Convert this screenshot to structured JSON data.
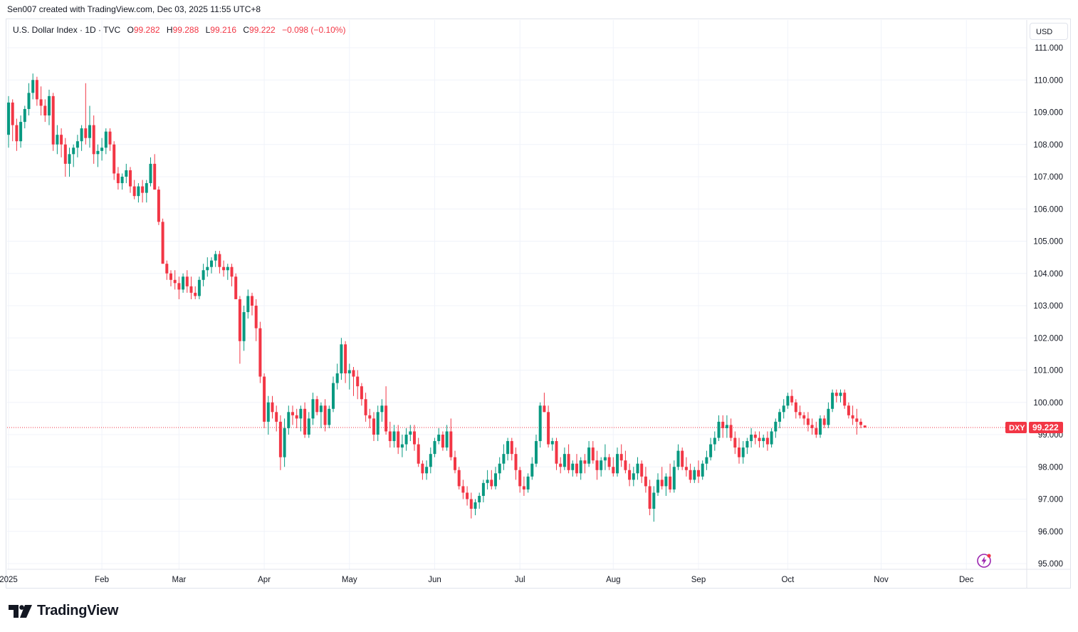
{
  "header": {
    "caption": "Sen007 created with TradingView.com, Dec 03, 2025 11:55 UTC+8"
  },
  "legend": {
    "symbol": "U.S. Dollar Index · 1D · TVC",
    "o_label": "O",
    "o_value": "99.282",
    "h_label": "H",
    "h_value": "99.288",
    "l_label": "L",
    "l_value": "99.216",
    "c_label": "C",
    "c_value": "99.222",
    "change": "−0.098 (−0.10%)"
  },
  "currency": "USD",
  "price_badge": {
    "ticker": "DXY",
    "price": "99.222"
  },
  "footer": {
    "brand": "TradingView"
  },
  "colors": {
    "up": "#089981",
    "down": "#f23645",
    "grid": "#f0f3fa",
    "axis_text": "#131722"
  },
  "chart_data": {
    "type": "candlestick",
    "title": "U.S. Dollar Index · 1D · TVC",
    "ylabel": "USD",
    "ylim": [
      94.7,
      111.4
    ],
    "y_ticks": [
      "95.000",
      "96.000",
      "97.000",
      "98.000",
      "99.000",
      "100.000",
      "101.000",
      "102.000",
      "103.000",
      "104.000",
      "105.000",
      "106.000",
      "107.000",
      "108.000",
      "109.000",
      "110.000",
      "111.000"
    ],
    "x_tick_labels": [
      "2025",
      "Feb",
      "Mar",
      "Apr",
      "May",
      "Jun",
      "Jul",
      "Aug",
      "Sep",
      "Oct",
      "Nov",
      "Dec"
    ],
    "x_tick_bar_index": [
      0,
      23,
      42,
      63,
      84,
      105,
      126,
      149,
      170,
      192,
      215,
      236
    ],
    "last_price": 99.222,
    "candles": [
      [
        108.3,
        109.5,
        107.9,
        109.3
      ],
      [
        109.3,
        109.4,
        108.1,
        108.6
      ],
      [
        108.6,
        108.8,
        107.8,
        108.1
      ],
      [
        108.1,
        108.9,
        107.9,
        108.7
      ],
      [
        108.7,
        109.2,
        108.5,
        109.1
      ],
      [
        109.1,
        109.9,
        108.9,
        109.6
      ],
      [
        109.6,
        110.2,
        109.4,
        110.0
      ],
      [
        110.0,
        110.1,
        109.2,
        109.4
      ],
      [
        109.4,
        109.8,
        108.9,
        109.2
      ],
      [
        109.2,
        109.4,
        108.7,
        108.9
      ],
      [
        108.9,
        109.7,
        108.6,
        109.5
      ],
      [
        109.5,
        109.6,
        107.8,
        108.0
      ],
      [
        108.0,
        108.6,
        107.7,
        108.3
      ],
      [
        108.3,
        108.5,
        107.6,
        108.0
      ],
      [
        108.0,
        108.2,
        107.0,
        107.4
      ],
      [
        107.4,
        107.9,
        107.0,
        107.7
      ],
      [
        107.7,
        108.0,
        107.3,
        107.9
      ],
      [
        107.9,
        108.3,
        107.6,
        108.1
      ],
      [
        108.1,
        108.6,
        107.8,
        108.5
      ],
      [
        108.5,
        109.9,
        108.0,
        108.2
      ],
      [
        108.2,
        109.2,
        107.9,
        108.6
      ],
      [
        108.6,
        108.9,
        107.4,
        107.7
      ],
      [
        107.7,
        108.0,
        107.3,
        107.8
      ],
      [
        107.8,
        108.2,
        107.5,
        107.9
      ],
      [
        107.9,
        108.5,
        107.7,
        108.4
      ],
      [
        108.4,
        108.5,
        107.8,
        108.0
      ],
      [
        108.0,
        108.1,
        106.9,
        107.1
      ],
      [
        107.1,
        107.3,
        106.6,
        106.8
      ],
      [
        106.8,
        107.1,
        106.6,
        107.0
      ],
      [
        107.0,
        107.4,
        106.8,
        107.2
      ],
      [
        107.2,
        107.3,
        106.5,
        106.7
      ],
      [
        106.7,
        106.9,
        106.3,
        106.4
      ],
      [
        106.4,
        106.8,
        106.2,
        106.7
      ],
      [
        106.7,
        106.9,
        106.2,
        106.5
      ],
      [
        106.5,
        106.9,
        106.2,
        106.8
      ],
      [
        106.8,
        107.6,
        106.7,
        107.4
      ],
      [
        107.4,
        107.7,
        106.6,
        106.6
      ],
      [
        106.6,
        106.7,
        105.5,
        105.6
      ],
      [
        105.6,
        105.7,
        104.3,
        104.3
      ],
      [
        104.3,
        104.4,
        103.8,
        104.0
      ],
      [
        104.0,
        104.1,
        103.6,
        103.8
      ],
      [
        103.8,
        104.1,
        103.5,
        103.7
      ],
      [
        103.7,
        103.9,
        103.2,
        103.5
      ],
      [
        103.5,
        104.0,
        103.4,
        103.9
      ],
      [
        103.9,
        104.1,
        103.4,
        103.6
      ],
      [
        103.6,
        103.9,
        103.2,
        103.4
      ],
      [
        103.4,
        103.6,
        103.2,
        103.3
      ],
      [
        103.3,
        103.9,
        103.2,
        103.8
      ],
      [
        103.8,
        104.3,
        103.6,
        104.1
      ],
      [
        104.1,
        104.5,
        103.9,
        104.2
      ],
      [
        104.2,
        104.5,
        104.0,
        104.4
      ],
      [
        104.4,
        104.7,
        104.2,
        104.6
      ],
      [
        104.6,
        104.7,
        104.0,
        104.2
      ],
      [
        104.2,
        104.4,
        103.9,
        104.1
      ],
      [
        104.1,
        104.3,
        103.8,
        104.2
      ],
      [
        104.2,
        104.3,
        103.6,
        103.9
      ],
      [
        103.9,
        104.0,
        103.3,
        103.2
      ],
      [
        103.2,
        103.3,
        101.2,
        101.9
      ],
      [
        101.9,
        103.0,
        101.6,
        102.8
      ],
      [
        102.8,
        103.5,
        102.6,
        103.3
      ],
      [
        103.3,
        103.4,
        102.7,
        103.0
      ],
      [
        103.0,
        103.2,
        101.9,
        102.3
      ],
      [
        102.3,
        102.5,
        100.6,
        100.8
      ],
      [
        100.8,
        100.9,
        99.2,
        99.4
      ],
      [
        99.4,
        100.2,
        99.0,
        100.0
      ],
      [
        100.0,
        100.2,
        99.5,
        99.7
      ],
      [
        99.7,
        99.9,
        99.1,
        99.4
      ],
      [
        99.4,
        99.6,
        97.9,
        98.3
      ],
      [
        98.3,
        99.5,
        98.0,
        99.2
      ],
      [
        99.2,
        99.9,
        99.0,
        99.7
      ],
      [
        99.7,
        99.9,
        99.3,
        99.6
      ],
      [
        99.6,
        99.8,
        99.2,
        99.5
      ],
      [
        99.5,
        99.9,
        99.1,
        99.8
      ],
      [
        99.8,
        100.0,
        98.9,
        99.0
      ],
      [
        99.0,
        99.7,
        98.9,
        99.5
      ],
      [
        99.5,
        100.3,
        99.3,
        100.1
      ],
      [
        100.1,
        100.2,
        99.6,
        99.7
      ],
      [
        99.7,
        100.0,
        99.2,
        99.9
      ],
      [
        99.9,
        100.1,
        99.1,
        99.3
      ],
      [
        99.3,
        99.9,
        99.2,
        99.8
      ],
      [
        99.8,
        100.8,
        99.7,
        100.6
      ],
      [
        100.6,
        101.2,
        100.4,
        100.9
      ],
      [
        100.9,
        102.0,
        100.7,
        101.8
      ],
      [
        101.8,
        101.9,
        100.6,
        100.9
      ],
      [
        100.9,
        101.2,
        100.4,
        101.0
      ],
      [
        101.0,
        101.1,
        100.2,
        100.8
      ],
      [
        100.8,
        101.0,
        100.1,
        100.5
      ],
      [
        100.5,
        100.6,
        99.9,
        100.1
      ],
      [
        100.1,
        100.3,
        99.4,
        99.6
      ],
      [
        99.6,
        99.8,
        99.2,
        99.5
      ],
      [
        99.5,
        99.7,
        98.8,
        99.0
      ],
      [
        99.0,
        99.9,
        98.8,
        99.7
      ],
      [
        99.7,
        100.1,
        99.4,
        99.9
      ],
      [
        99.9,
        100.5,
        99.0,
        99.1
      ],
      [
        99.1,
        99.4,
        98.6,
        98.8
      ],
      [
        98.8,
        99.3,
        98.6,
        99.1
      ],
      [
        99.1,
        99.3,
        98.4,
        98.6
      ],
      [
        98.6,
        99.0,
        98.3,
        98.7
      ],
      [
        98.7,
        99.2,
        98.5,
        99.0
      ],
      [
        99.0,
        99.3,
        98.8,
        99.1
      ],
      [
        99.1,
        99.3,
        98.5,
        98.7
      ],
      [
        98.7,
        98.9,
        98.0,
        98.1
      ],
      [
        98.1,
        98.2,
        97.6,
        97.8
      ],
      [
        97.8,
        98.2,
        97.6,
        98.0
      ],
      [
        98.0,
        98.6,
        97.8,
        98.4
      ],
      [
        98.4,
        98.9,
        98.3,
        98.8
      ],
      [
        98.8,
        99.2,
        98.7,
        99.0
      ],
      [
        99.0,
        99.1,
        98.5,
        98.6
      ],
      [
        98.6,
        99.3,
        98.5,
        99.1
      ],
      [
        99.1,
        99.5,
        98.2,
        98.3
      ],
      [
        98.3,
        98.5,
        97.8,
        97.9
      ],
      [
        97.9,
        98.0,
        97.3,
        97.4
      ],
      [
        97.4,
        97.6,
        97.0,
        97.2
      ],
      [
        97.2,
        97.4,
        96.8,
        97.0
      ],
      [
        97.0,
        97.2,
        96.4,
        96.7
      ],
      [
        96.7,
        97.0,
        96.5,
        96.9
      ],
      [
        96.9,
        97.2,
        96.7,
        97.1
      ],
      [
        97.1,
        97.6,
        96.9,
        97.5
      ],
      [
        97.5,
        97.9,
        97.3,
        97.6
      ],
      [
        97.6,
        97.9,
        97.3,
        97.4
      ],
      [
        97.4,
        98.0,
        97.3,
        97.8
      ],
      [
        97.8,
        98.3,
        97.6,
        98.1
      ],
      [
        98.1,
        98.7,
        97.9,
        98.4
      ],
      [
        98.4,
        98.9,
        98.2,
        98.8
      ],
      [
        98.8,
        98.9,
        98.2,
        98.4
      ],
      [
        98.4,
        98.6,
        97.6,
        97.9
      ],
      [
        97.9,
        98.0,
        97.2,
        97.4
      ],
      [
        97.4,
        97.7,
        97.1,
        97.3
      ],
      [
        97.3,
        97.8,
        97.2,
        97.7
      ],
      [
        97.7,
        98.3,
        97.6,
        98.1
      ],
      [
        98.1,
        99.0,
        98.0,
        98.8
      ],
      [
        98.8,
        100.0,
        98.6,
        99.9
      ],
      [
        99.9,
        100.3,
        99.7,
        99.7
      ],
      [
        99.7,
        99.9,
        98.6,
        98.7
      ],
      [
        98.7,
        98.9,
        98.5,
        98.8
      ],
      [
        98.8,
        98.9,
        97.9,
        98.1
      ],
      [
        98.1,
        98.3,
        97.8,
        98.0
      ],
      [
        98.0,
        98.6,
        97.9,
        98.4
      ],
      [
        98.4,
        98.7,
        97.8,
        97.9
      ],
      [
        97.9,
        98.2,
        97.7,
        98.1
      ],
      [
        98.1,
        98.4,
        97.7,
        97.8
      ],
      [
        97.8,
        98.3,
        97.6,
        98.2
      ],
      [
        98.2,
        98.4,
        97.8,
        98.1
      ],
      [
        98.1,
        98.8,
        98.0,
        98.6
      ],
      [
        98.6,
        98.8,
        98.1,
        98.2
      ],
      [
        98.2,
        98.5,
        97.6,
        97.9
      ],
      [
        97.9,
        98.3,
        97.7,
        98.2
      ],
      [
        98.2,
        98.7,
        97.9,
        98.3
      ],
      [
        98.3,
        98.4,
        97.9,
        98.0
      ],
      [
        98.0,
        98.3,
        97.7,
        97.8
      ],
      [
        97.8,
        98.6,
        97.7,
        98.4
      ],
      [
        98.4,
        98.7,
        98.0,
        98.2
      ],
      [
        98.2,
        98.5,
        97.8,
        97.9
      ],
      [
        97.9,
        98.1,
        97.4,
        97.6
      ],
      [
        97.6,
        98.0,
        97.4,
        97.8
      ],
      [
        97.8,
        98.3,
        97.6,
        98.1
      ],
      [
        98.1,
        98.2,
        97.5,
        97.7
      ],
      [
        97.7,
        98.0,
        97.2,
        97.4
      ],
      [
        97.4,
        97.6,
        96.5,
        96.7
      ],
      [
        96.7,
        97.4,
        96.3,
        97.2
      ],
      [
        97.2,
        97.8,
        97.1,
        97.6
      ],
      [
        97.6,
        98.0,
        97.3,
        97.4
      ],
      [
        97.4,
        97.8,
        97.1,
        97.7
      ],
      [
        97.7,
        98.1,
        97.2,
        97.3
      ],
      [
        97.3,
        98.2,
        97.2,
        98.0
      ],
      [
        98.0,
        98.7,
        97.9,
        98.5
      ],
      [
        98.5,
        98.6,
        97.9,
        98.0
      ],
      [
        98.0,
        98.3,
        97.7,
        97.9
      ],
      [
        97.9,
        98.1,
        97.5,
        97.6
      ],
      [
        97.6,
        98.0,
        97.5,
        97.9
      ],
      [
        97.9,
        98.2,
        97.5,
        97.7
      ],
      [
        97.7,
        98.2,
        97.6,
        98.1
      ],
      [
        98.1,
        98.5,
        97.9,
        98.3
      ],
      [
        98.3,
        98.9,
        98.2,
        98.7
      ],
      [
        98.7,
        99.1,
        98.5,
        98.9
      ],
      [
        98.9,
        99.6,
        98.8,
        99.4
      ],
      [
        99.4,
        99.6,
        98.9,
        99.2
      ],
      [
        99.2,
        99.6,
        98.9,
        99.3
      ],
      [
        99.3,
        99.5,
        98.8,
        98.9
      ],
      [
        98.9,
        99.1,
        98.4,
        98.6
      ],
      [
        98.6,
        98.9,
        98.1,
        98.3
      ],
      [
        98.3,
        98.8,
        98.1,
        98.6
      ],
      [
        98.6,
        98.9,
        98.4,
        98.8
      ],
      [
        98.8,
        99.2,
        98.6,
        99.0
      ],
      [
        99.0,
        99.1,
        98.7,
        98.9
      ],
      [
        98.9,
        99.1,
        98.6,
        98.8
      ],
      [
        98.8,
        99.0,
        98.6,
        98.9
      ],
      [
        98.9,
        99.1,
        98.5,
        98.7
      ],
      [
        98.7,
        99.2,
        98.6,
        99.1
      ],
      [
        99.1,
        99.5,
        98.9,
        99.4
      ],
      [
        99.4,
        99.8,
        99.2,
        99.7
      ],
      [
        99.7,
        100.1,
        99.5,
        99.9
      ],
      [
        99.9,
        100.3,
        99.8,
        100.2
      ],
      [
        100.2,
        100.4,
        99.9,
        100.0
      ],
      [
        100.0,
        100.1,
        99.5,
        99.7
      ],
      [
        99.7,
        99.9,
        99.5,
        99.6
      ],
      [
        99.6,
        99.7,
        99.3,
        99.5
      ],
      [
        99.5,
        99.7,
        99.1,
        99.3
      ],
      [
        99.3,
        99.5,
        99.0,
        99.2
      ],
      [
        99.2,
        99.4,
        98.9,
        99.0
      ],
      [
        99.0,
        99.6,
        98.9,
        99.5
      ],
      [
        99.5,
        99.6,
        99.2,
        99.3
      ],
      [
        99.3,
        100.0,
        99.2,
        99.8
      ],
      [
        99.8,
        100.4,
        99.7,
        100.3
      ],
      [
        100.3,
        100.4,
        100.0,
        100.2
      ],
      [
        100.2,
        100.4,
        100.0,
        100.3
      ],
      [
        100.3,
        100.4,
        99.8,
        99.9
      ],
      [
        99.9,
        100.0,
        99.5,
        99.6
      ],
      [
        99.6,
        99.9,
        99.3,
        99.5
      ],
      [
        99.5,
        99.8,
        99.0,
        99.4
      ],
      [
        99.4,
        99.5,
        99.2,
        99.3
      ],
      [
        99.282,
        99.288,
        99.216,
        99.222
      ]
    ]
  }
}
